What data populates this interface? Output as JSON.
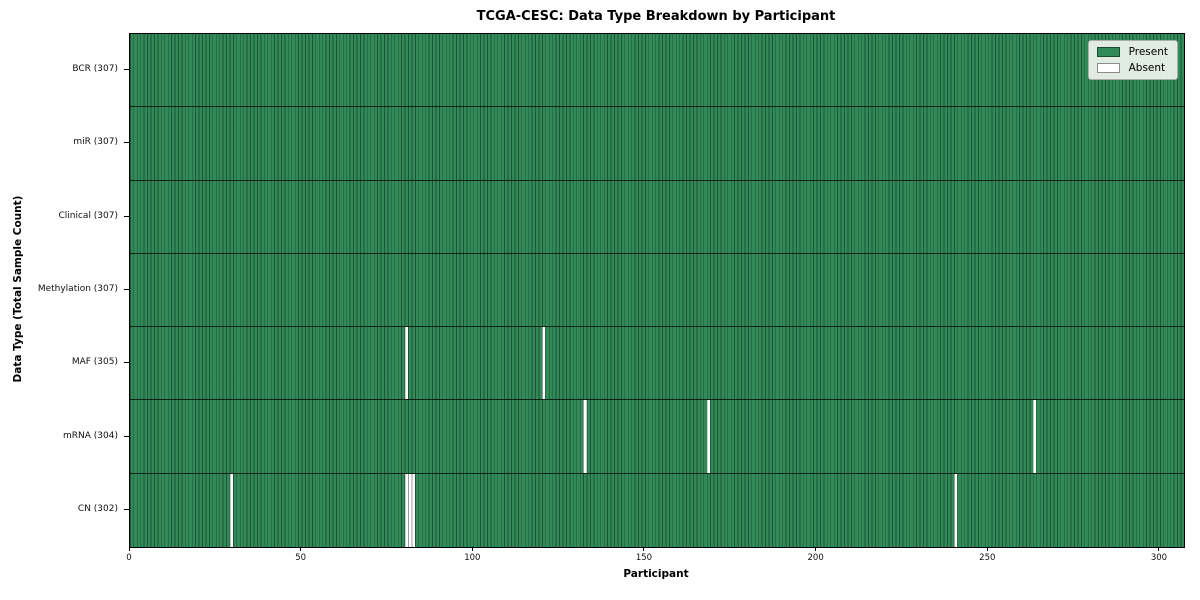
{
  "chart_data": {
    "type": "heatmap",
    "title": "TCGA-CESC: Data Type Breakdown by Participant",
    "xlabel": "Participant",
    "ylabel": "Data Type (Total Sample Count)",
    "xlim": [
      0,
      307
    ],
    "x_ticks": [
      0,
      50,
      100,
      150,
      200,
      250,
      300
    ],
    "n_participants": 307,
    "grid": false,
    "legend_position": "upper right",
    "colors": {
      "present": "#318a58",
      "absent": "#ffffff",
      "bar_edge": "rgba(0,0,0,0.40)",
      "row_separator": "rgba(0,0,0,0.72)"
    },
    "legend": [
      {
        "label": "Present",
        "color": "#318a58"
      },
      {
        "label": "Absent",
        "color": "#ffffff"
      }
    ],
    "rows": [
      {
        "label": "BCR (307)",
        "data_type": "BCR",
        "total": 307,
        "absent_participants": []
      },
      {
        "label": "miR (307)",
        "data_type": "miR",
        "total": 307,
        "absent_participants": []
      },
      {
        "label": "Clinical (307)",
        "data_type": "Clinical",
        "total": 307,
        "absent_participants": []
      },
      {
        "label": "Methylation (307)",
        "data_type": "Methylation",
        "total": 307,
        "absent_participants": []
      },
      {
        "label": "MAF (305)",
        "data_type": "MAF",
        "total": 305,
        "absent_participants": [
          80,
          120
        ]
      },
      {
        "label": "mRNA (304)",
        "data_type": "mRNA",
        "total": 304,
        "absent_participants": [
          132,
          168,
          263
        ]
      },
      {
        "label": "CN (302)",
        "data_type": "CN",
        "total": 302,
        "absent_participants": [
          29,
          80,
          81,
          82,
          240
        ]
      }
    ]
  }
}
